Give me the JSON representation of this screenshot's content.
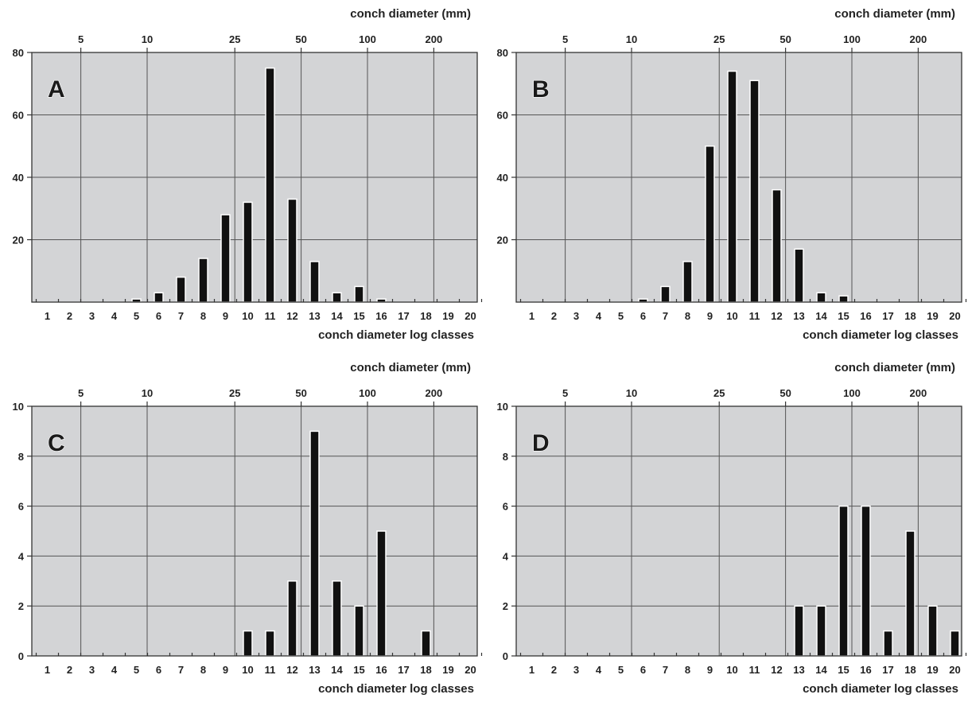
{
  "chart_data": [
    {
      "type": "bar",
      "panel_label": "A",
      "categories": [
        "1",
        "2",
        "3",
        "4",
        "5",
        "6",
        "7",
        "8",
        "9",
        "10",
        "11",
        "12",
        "13",
        "14",
        "15",
        "16",
        "17",
        "18",
        "19",
        "20"
      ],
      "values": [
        0,
        0,
        0,
        0,
        1,
        3,
        8,
        14,
        28,
        32,
        75,
        33,
        13,
        3,
        5,
        1,
        0,
        0,
        0,
        0
      ],
      "xlabel": "conch diameter log classes",
      "x2label": "conch diameter (mm)",
      "x2ticks": [
        "5",
        "10",
        "25",
        "50",
        "100",
        "200"
      ],
      "yticks": [
        "20",
        "40",
        "60",
        "80"
      ],
      "ylim": [
        0,
        80
      ],
      "grid": true
    },
    {
      "type": "bar",
      "panel_label": "B",
      "categories": [
        "1",
        "2",
        "3",
        "4",
        "5",
        "6",
        "7",
        "8",
        "9",
        "10",
        "11",
        "12",
        "13",
        "14",
        "15",
        "16",
        "17",
        "18",
        "19",
        "20"
      ],
      "values": [
        0,
        0,
        0,
        0,
        0,
        1,
        5,
        13,
        50,
        74,
        71,
        36,
        17,
        3,
        2,
        0,
        0,
        0,
        0,
        0
      ],
      "xlabel": "conch diameter log classes",
      "x2label": "conch diameter (mm)",
      "x2ticks": [
        "5",
        "10",
        "25",
        "50",
        "100",
        "200"
      ],
      "yticks": [
        "20",
        "40",
        "60",
        "80"
      ],
      "ylim": [
        0,
        80
      ],
      "grid": true
    },
    {
      "type": "bar",
      "panel_label": "C",
      "categories": [
        "1",
        "2",
        "3",
        "4",
        "5",
        "6",
        "7",
        "8",
        "9",
        "10",
        "11",
        "12",
        "13",
        "14",
        "15",
        "16",
        "17",
        "18",
        "19",
        "20"
      ],
      "values": [
        0,
        0,
        0,
        0,
        0,
        0,
        0,
        0,
        0,
        1,
        1,
        3,
        9,
        3,
        2,
        5,
        0,
        1,
        0,
        0
      ],
      "xlabel": "conch diameter log classes",
      "x2label": "conch diameter (mm)",
      "x2ticks": [
        "5",
        "10",
        "25",
        "50",
        "100",
        "200"
      ],
      "yticks": [
        "0",
        "2",
        "4",
        "6",
        "8",
        "10"
      ],
      "ylim": [
        0,
        10
      ],
      "grid": true
    },
    {
      "type": "bar",
      "panel_label": "D",
      "categories": [
        "1",
        "2",
        "3",
        "4",
        "5",
        "6",
        "7",
        "8",
        "9",
        "10",
        "11",
        "12",
        "13",
        "14",
        "15",
        "16",
        "17",
        "18",
        "19",
        "20"
      ],
      "values": [
        0,
        0,
        0,
        0,
        0,
        0,
        0,
        0,
        0,
        0,
        0,
        0,
        2,
        2,
        6,
        6,
        1,
        5,
        2,
        1
      ],
      "xlabel": "conch diameter log classes",
      "x2label": "conch diameter (mm)",
      "x2ticks": [
        "5",
        "10",
        "25",
        "50",
        "100",
        "200"
      ],
      "yticks": [
        "0",
        "2",
        "4",
        "6",
        "8",
        "10"
      ],
      "ylim": [
        0,
        10
      ],
      "grid": true
    }
  ],
  "colors": {
    "plot_background": "#d3d4d6",
    "bar_fill": "#111111",
    "grid": "#555555"
  }
}
